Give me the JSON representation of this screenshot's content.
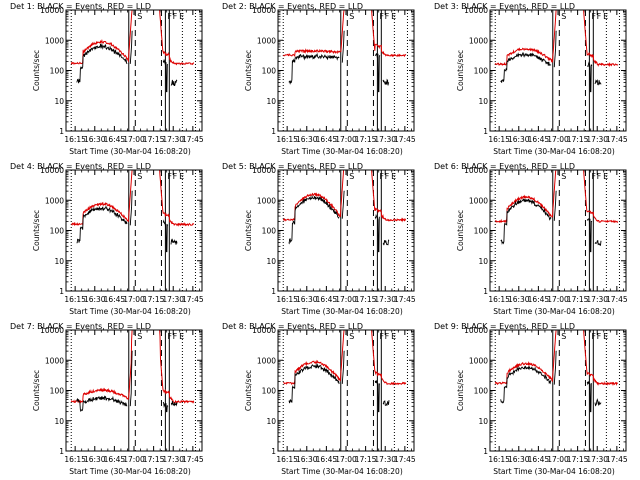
{
  "chart_data": [
    {
      "type": "line",
      "title": "Det  1: BLACK = Events, RED = LLD",
      "xlabel": "Start Time (30-Mar-04 16:08:20)",
      "ylabel": "Counts/sec",
      "yscale": "log",
      "ylim": [
        1,
        10000
      ],
      "profile": "1",
      "events_factor": 0.78,
      "red_scale": 1.0,
      "black_shadow": true
    },
    {
      "type": "line",
      "title": "Det  2: BLACK = Events, RED = LLD",
      "xlabel": "Start Time (30-Mar-04 16:08:20)",
      "ylabel": "Counts/sec",
      "yscale": "log",
      "ylim": [
        1,
        10000
      ],
      "profile": "2",
      "events_factor": 0.72,
      "red_scale": 1.0,
      "black_shadow": false
    },
    {
      "type": "line",
      "title": "Det  3: BLACK = Events, RED = LLD",
      "xlabel": "Start Time (30-Mar-04 16:08:20)",
      "ylabel": "Counts/sec",
      "yscale": "log",
      "ylim": [
        1,
        10000
      ],
      "profile": "3",
      "events_factor": 0.72,
      "red_scale": 1.0,
      "black_shadow": true
    },
    {
      "type": "line",
      "title": "Det  4: BLACK = Events, RED = LLD",
      "xlabel": "Start Time (30-Mar-04 16:08:20)",
      "ylabel": "Counts/sec",
      "yscale": "log",
      "ylim": [
        1,
        10000
      ],
      "profile": "4",
      "events_factor": 0.8,
      "red_scale": 1.0,
      "black_shadow": true
    },
    {
      "type": "line",
      "title": "Det  5: BLACK = Events, RED = LLD",
      "xlabel": "Start Time (30-Mar-04 16:08:20)",
      "ylabel": "Counts/sec",
      "yscale": "log",
      "ylim": [
        1,
        10000
      ],
      "profile": "5",
      "events_factor": 0.86,
      "red_scale": 1.0,
      "black_shadow": true
    },
    {
      "type": "line",
      "title": "Det  6: BLACK = Events, RED = LLD",
      "xlabel": "Start Time (30-Mar-04 16:08:20)",
      "ylabel": "Counts/sec",
      "yscale": "log",
      "ylim": [
        1,
        10000
      ],
      "profile": "6",
      "events_factor": 0.85,
      "red_scale": 1.0,
      "black_shadow": true
    },
    {
      "type": "line",
      "title": "Det  7: BLACK = Events, RED = LLD",
      "xlabel": "Start Time (30-Mar-04 16:08:20)",
      "ylabel": "Counts/sec",
      "yscale": "log",
      "ylim": [
        1,
        10000
      ],
      "profile": "7",
      "events_factor": 0.6,
      "red_scale": 0.27,
      "black_shadow": true
    },
    {
      "type": "line",
      "title": "Det  8: BLACK = Events, RED = LLD",
      "xlabel": "Start Time (30-Mar-04 16:08:20)",
      "ylabel": "Counts/sec",
      "yscale": "log",
      "ylim": [
        1,
        10000
      ],
      "profile": "8",
      "events_factor": 0.8,
      "red_scale": 1.0,
      "black_shadow": true
    },
    {
      "type": "line",
      "title": "Det  9: BLACK = Events, RED = LLD",
      "xlabel": "Start Time (30-Mar-04 16:08:20)",
      "ylabel": "Counts/sec",
      "yscale": "log",
      "ylim": [
        1,
        10000
      ],
      "profile": "9",
      "events_factor": 0.8,
      "red_scale": 1.0,
      "black_shadow": true
    }
  ],
  "axes": {
    "x_tick_labels": [
      "16:15",
      "16:30",
      "16:45",
      "17:00",
      "17:15",
      "17:30",
      "17:45"
    ],
    "x_tick_minutes": [
      15,
      30,
      45,
      60,
      75,
      90,
      105
    ],
    "xlim_minutes": [
      8,
      112
    ],
    "y_tick_labels": [
      "1",
      "10",
      "100",
      "1000",
      "10000"
    ],
    "y_tick_values": [
      1,
      10,
      100,
      1000,
      10000
    ]
  },
  "markers": {
    "solid_minutes": [
      8,
      56,
      84,
      87
    ],
    "dashed_minutes": [
      61,
      81
    ],
    "dotted_minutes": [
      12,
      97,
      107
    ],
    "letters": [
      {
        "text": "S",
        "minute": 61
      },
      {
        "text": "F",
        "minute": 84
      },
      {
        "text": "F",
        "minute": 88
      },
      {
        "text": "E",
        "minute": 93
      }
    ]
  },
  "series_style": {
    "events_label": "Events",
    "lld_label": "LLD",
    "events_color": "#000000",
    "lld_color": "#dd0000"
  }
}
